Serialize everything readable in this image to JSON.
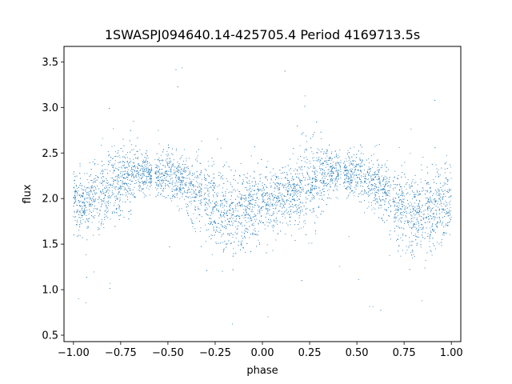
{
  "chart_data": {
    "type": "scatter",
    "title": "1SWASPJ094640.14-425705.4 Period 4169713.5s",
    "xlabel": "phase",
    "ylabel": "flux",
    "xlim": [
      -1.05,
      1.05
    ],
    "ylim": [
      0.43,
      3.67
    ],
    "x_ticks": [
      -1.0,
      -0.75,
      -0.5,
      -0.25,
      0.0,
      0.25,
      0.5,
      0.75,
      1.0
    ],
    "x_tick_labels": [
      "−1.00",
      "−0.75",
      "−0.50",
      "−0.25",
      "0.00",
      "0.25",
      "0.50",
      "0.75",
      "1.00"
    ],
    "y_ticks": [
      0.5,
      1.0,
      1.5,
      2.0,
      2.5,
      3.0,
      3.5
    ],
    "y_tick_labels": [
      "0.5",
      "1.0",
      "1.5",
      "2.0",
      "2.5",
      "3.0",
      "3.5"
    ],
    "grid": false,
    "marker_color": "#1f77b4",
    "series": [
      {
        "phase_range": [
          -1.0,
          1.0
        ],
        "folded_period_in_phase": 1.0,
        "mean_flux_profile": {
          "phase": [
            0.0,
            0.05,
            0.1,
            0.15,
            0.2,
            0.25,
            0.3,
            0.35,
            0.4,
            0.45,
            0.5,
            0.55,
            0.6,
            0.65,
            0.7,
            0.75,
            0.8,
            0.85,
            0.9,
            0.95,
            1.0
          ],
          "flux": [
            2.0,
            1.95,
            2.0,
            2.05,
            2.1,
            2.2,
            2.25,
            2.3,
            2.28,
            2.25,
            2.3,
            2.2,
            2.15,
            2.05,
            1.95,
            1.9,
            1.85,
            1.85,
            1.85,
            1.9,
            2.0
          ],
          "spread": [
            0.25,
            0.25,
            0.25,
            0.25,
            0.3,
            0.3,
            0.3,
            0.2,
            0.15,
            0.15,
            0.2,
            0.2,
            0.25,
            0.25,
            0.3,
            0.3,
            0.3,
            0.3,
            0.3,
            0.3,
            0.25
          ]
        },
        "gaps_in_phase": [
          [
            0.415,
            0.43
          ],
          [
            -0.585,
            -0.57
          ],
          [
            0.68,
            0.69
          ],
          [
            -0.32,
            -0.31
          ]
        ]
      }
    ]
  }
}
